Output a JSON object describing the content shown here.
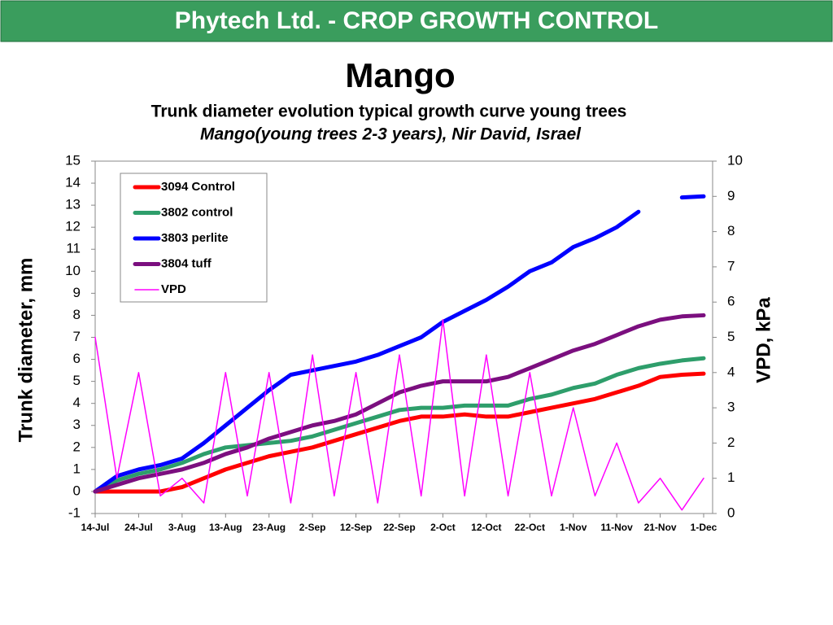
{
  "header": {
    "title": "Phytech Ltd. - CROP GROWTH CONTROL"
  },
  "chart_data": {
    "type": "line",
    "title": "Mango",
    "subtitle": "Trunk diameter evolution typical growth curve young trees",
    "subtitle2": "Mango(young trees 2-3 years), Nir David, Israel",
    "ylabel": "Trunk diameter, mm",
    "y2label": "VPD, kPa",
    "categories": [
      "14-Jul",
      null,
      "24-Jul",
      null,
      "3-Aug",
      null,
      "13-Aug",
      null,
      "23-Aug",
      null,
      "2-Sep",
      null,
      "12-Sep",
      null,
      "22-Sep",
      null,
      "2-Oct",
      null,
      "12-Oct",
      null,
      "22-Oct",
      null,
      "1-Nov",
      null,
      "11-Nov",
      null,
      "21-Nov",
      null,
      "1-Dec"
    ],
    "ylim": [
      -1,
      15
    ],
    "yticks": [
      -1,
      0,
      1,
      2,
      3,
      4,
      5,
      6,
      7,
      8,
      9,
      10,
      11,
      12,
      13,
      14,
      15
    ],
    "y2lim": [
      0,
      10
    ],
    "y2ticks": [
      0,
      1,
      2,
      3,
      4,
      5,
      6,
      7,
      8,
      9,
      10
    ],
    "legend": "upper left",
    "series": [
      {
        "name": "3094 Control",
        "color": "#ff0000",
        "values": [
          0,
          0,
          0,
          0,
          0.2,
          0.6,
          1.0,
          1.3,
          1.6,
          1.8,
          2.0,
          2.3,
          2.6,
          2.9,
          3.2,
          3.4,
          3.4,
          3.5,
          3.4,
          3.4,
          3.6,
          3.8,
          4.0,
          4.2,
          4.5,
          4.8,
          5.2,
          5.3,
          5.35
        ]
      },
      {
        "name": "3802 control",
        "color": "#2e9e6b",
        "values": [
          0,
          0.5,
          0.8,
          1.0,
          1.3,
          1.7,
          2.0,
          2.1,
          2.2,
          2.3,
          2.5,
          2.8,
          3.1,
          3.4,
          3.7,
          3.8,
          3.8,
          3.9,
          3.9,
          3.9,
          4.2,
          4.4,
          4.7,
          4.9,
          5.3,
          5.6,
          5.8,
          5.95,
          6.05
        ]
      },
      {
        "name": "3803 perlite",
        "color": "#0000ff",
        "values": [
          0,
          0.7,
          1.0,
          1.2,
          1.5,
          2.2,
          3.0,
          3.8,
          4.6,
          5.3,
          5.5,
          5.7,
          5.9,
          6.2,
          6.6,
          7.0,
          7.7,
          8.2,
          8.7,
          9.3,
          10.0,
          10.4,
          11.1,
          11.5,
          12.0,
          12.7,
          null,
          13.35,
          13.4
        ]
      },
      {
        "name": "3804 tuff",
        "color": "#7b0f7f",
        "values": [
          0,
          0.3,
          0.6,
          0.8,
          1.0,
          1.3,
          1.7,
          2.0,
          2.4,
          2.7,
          3.0,
          3.2,
          3.5,
          4.0,
          4.5,
          4.8,
          5.0,
          5.0,
          5.0,
          5.2,
          5.6,
          6.0,
          6.4,
          6.7,
          7.1,
          7.5,
          7.8,
          7.95,
          8.0
        ]
      },
      {
        "name": "VPD",
        "color": "#ff00ff",
        "axis": "y2",
        "values": [
          5,
          1,
          4,
          0.5,
          1,
          0.3,
          4,
          0.5,
          4,
          0.3,
          4.5,
          0.5,
          4,
          0.3,
          4.5,
          0.5,
          5.5,
          0.5,
          4.5,
          0.5,
          4,
          0.5,
          3,
          0.5,
          2,
          0.3,
          1,
          0.1,
          1
        ]
      }
    ]
  }
}
